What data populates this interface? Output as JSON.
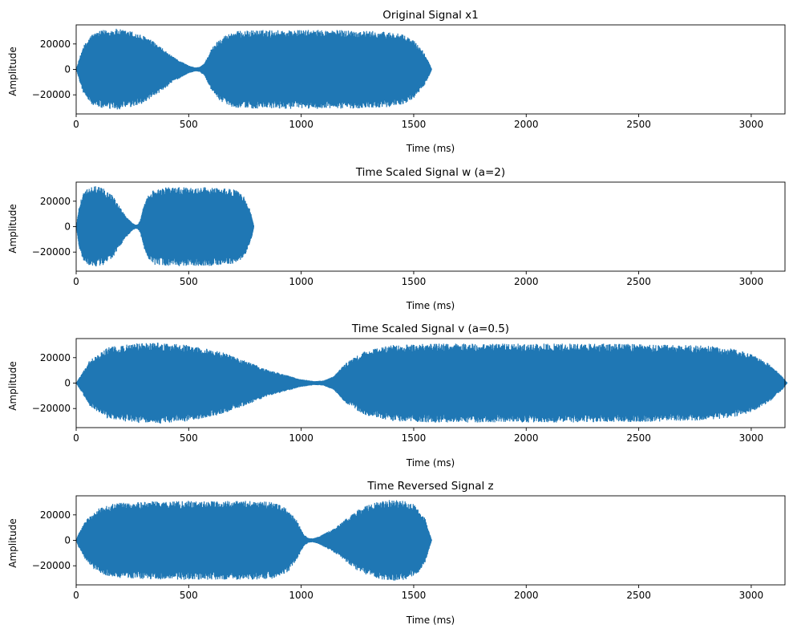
{
  "figure": {
    "background": "#ffffff",
    "line_color": "#1f77b4"
  },
  "chart_data": [
    {
      "type": "line",
      "title": "Original Signal x1",
      "xlabel": "Time (ms)",
      "ylabel": "Amplitude",
      "xlim": [
        0,
        3150
      ],
      "ylim": [
        -35000,
        35000
      ],
      "x_ticks": [
        0,
        500,
        1000,
        1500,
        2000,
        2500,
        3000
      ],
      "y_ticks": [
        -20000,
        0,
        20000
      ],
      "grid": false,
      "envelope": {
        "time_ms": [
          0,
          30,
          70,
          120,
          180,
          250,
          320,
          380,
          430,
          470,
          500,
          530,
          550,
          570,
          600,
          640,
          700,
          800,
          1000,
          1200,
          1400,
          1460,
          1500,
          1540,
          1570,
          1580
        ],
        "amplitude": [
          0,
          18000,
          28000,
          31000,
          32000,
          30000,
          25000,
          17000,
          10000,
          6000,
          3000,
          1500,
          2000,
          5000,
          16000,
          25000,
          30000,
          31000,
          31000,
          31000,
          29500,
          27000,
          23000,
          15000,
          5000,
          0
        ]
      }
    },
    {
      "type": "line",
      "title": "Time Scaled Signal w (a=2)",
      "xlabel": "Time (ms)",
      "ylabel": "Amplitude",
      "xlim": [
        0,
        3150
      ],
      "ylim": [
        -35000,
        35000
      ],
      "x_ticks": [
        0,
        500,
        1000,
        1500,
        2000,
        2500,
        3000
      ],
      "y_ticks": [
        -20000,
        0,
        20000
      ],
      "grid": false,
      "envelope": {
        "time_ms": [
          0,
          15,
          35,
          60,
          90,
          125,
          160,
          190,
          215,
          235,
          250,
          265,
          275,
          285,
          300,
          320,
          350,
          400,
          500,
          600,
          700,
          730,
          750,
          770,
          785,
          790
        ],
        "amplitude": [
          0,
          18000,
          28000,
          31000,
          32000,
          30000,
          25000,
          17000,
          10000,
          6000,
          3000,
          1500,
          2000,
          5000,
          16000,
          25000,
          30000,
          31000,
          31000,
          31000,
          29500,
          27000,
          23000,
          15000,
          5000,
          0
        ]
      }
    },
    {
      "type": "line",
      "title": "Time Scaled Signal v (a=0.5)",
      "xlabel": "Time (ms)",
      "ylabel": "Amplitude",
      "xlim": [
        0,
        3150
      ],
      "ylim": [
        -35000,
        35000
      ],
      "x_ticks": [
        0,
        500,
        1000,
        1500,
        2000,
        2500,
        3000
      ],
      "y_ticks": [
        -20000,
        0,
        20000
      ],
      "grid": false,
      "envelope": {
        "time_ms": [
          0,
          60,
          140,
          240,
          360,
          500,
          640,
          760,
          860,
          940,
          1000,
          1060,
          1100,
          1140,
          1200,
          1280,
          1400,
          1600,
          2000,
          2400,
          2800,
          2920,
          3000,
          3080,
          3140,
          3160
        ],
        "amplitude": [
          0,
          18000,
          28000,
          31000,
          32000,
          30000,
          25000,
          17000,
          10000,
          6000,
          3000,
          1500,
          2000,
          5000,
          16000,
          25000,
          30000,
          31000,
          31000,
          31000,
          29500,
          27000,
          23000,
          15000,
          5000,
          0
        ]
      }
    },
    {
      "type": "line",
      "title": "Time Reversed Signal z",
      "xlabel": "Time (ms)",
      "ylabel": "Amplitude",
      "xlim": [
        0,
        3150
      ],
      "ylim": [
        -35000,
        35000
      ],
      "x_ticks": [
        0,
        500,
        1000,
        1500,
        2000,
        2500,
        3000
      ],
      "y_ticks": [
        -20000,
        0,
        20000
      ],
      "grid": false,
      "envelope": {
        "time_ms": [
          0,
          10,
          40,
          80,
          120,
          180,
          380,
          580,
          780,
          880,
          940,
          980,
          1010,
          1030,
          1050,
          1080,
          1110,
          1150,
          1200,
          1260,
          1330,
          1400,
          1460,
          1510,
          1550,
          1580
        ],
        "amplitude": [
          0,
          5000,
          15000,
          23000,
          27000,
          29500,
          31000,
          31000,
          31000,
          30000,
          25000,
          16000,
          5000,
          2000,
          1500,
          3000,
          6000,
          10000,
          17000,
          25000,
          30000,
          32000,
          31000,
          28000,
          18000,
          0
        ]
      }
    }
  ]
}
